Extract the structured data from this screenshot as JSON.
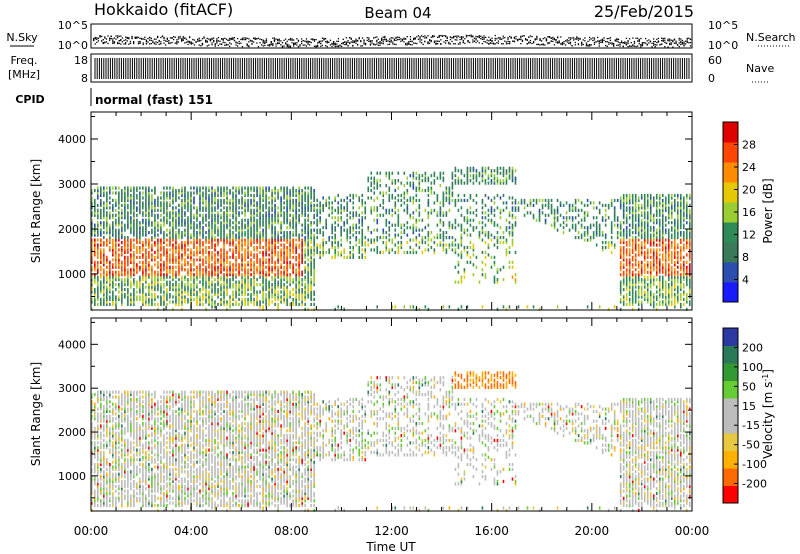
{
  "header": {
    "station": "Hokkaido (fitACF)",
    "beam": "Beam 04",
    "date": "25/Feb/2015"
  },
  "sky_panel": {
    "left_label": "N.Sky",
    "right_label": "N.Search",
    "ytick_top": "10^5",
    "ytick_bottom": "10^0"
  },
  "freq_panel": {
    "left_label_1": "Freq.",
    "left_label_2": "[MHz]",
    "left_ytick_top": "18",
    "left_ytick_bottom": "8",
    "right_label": "Nave",
    "right_ytick_top": "60",
    "right_ytick_bottom": "0"
  },
  "cpid": {
    "label": "CPID",
    "value": "normal (fast) 151"
  },
  "colors": {
    "power_scale": [
      "#1a1aff",
      "#2a4fb0",
      "#3a7a5a",
      "#2e8b57",
      "#9acd32",
      "#e6c800",
      "#ff8c00",
      "#ff4500",
      "#e00000"
    ],
    "velocity_scale": [
      "#ff0000",
      "#ff6a00",
      "#ffb000",
      "#e8c840",
      "#bdbdbd",
      "#bdbdbd",
      "#66cc33",
      "#339933",
      "#2a7a5a",
      "#2a3aa0"
    ]
  },
  "chart_data": [
    {
      "type": "heatmap",
      "title": "",
      "ylabel": "Slant Range [km]",
      "ylim": [
        200,
        4600
      ],
      "yticks": [
        "1000",
        "2000",
        "3000",
        "4000"
      ],
      "xlim": [
        "00:00",
        "24:00"
      ],
      "colorbar": {
        "label": "Power [dB]",
        "ticks": [
          "4",
          "8",
          "12",
          "16",
          "20",
          "24",
          "28"
        ],
        "range": [
          0,
          32
        ]
      }
    },
    {
      "type": "heatmap",
      "title": "",
      "ylabel": "Slant Range [km]",
      "xlabel": "Time UT",
      "ylim": [
        200,
        4600
      ],
      "yticks": [
        "1000",
        "2000",
        "3000",
        "4000"
      ],
      "xticks": [
        "00:00",
        "04:00",
        "08:00",
        "12:00",
        "16:00",
        "20:00",
        "00:00"
      ],
      "colorbar": {
        "label": "Velocity [m s^-1]",
        "ticks": [
          "200",
          "100",
          "50",
          "15",
          "-15",
          "-50",
          "-100",
          "-200"
        ],
        "range": [
          -250,
          250
        ]
      }
    }
  ]
}
